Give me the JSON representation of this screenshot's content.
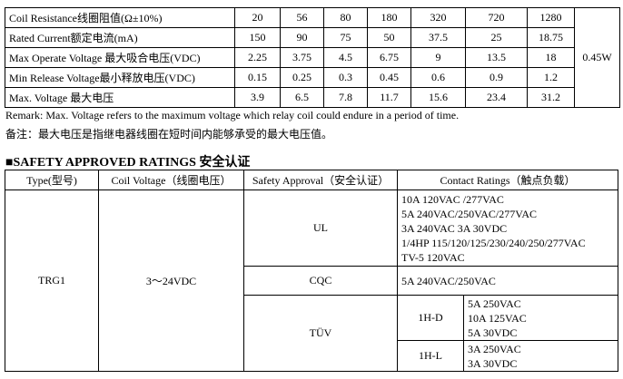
{
  "spec_table": {
    "rows": [
      {
        "label": "Coil Resistance线圈阻值(Ω±10%)",
        "values": [
          20,
          56,
          80,
          180,
          320,
          720,
          1280
        ]
      },
      {
        "label": "Rated Current额定电流(mA)",
        "values": [
          150,
          90,
          75,
          50,
          37.5,
          25,
          18.75
        ]
      },
      {
        "label": "Max Operate Voltage 最大吸合电压(VDC)",
        "values": [
          2.25,
          3.75,
          4.5,
          6.75,
          9,
          13.5,
          18
        ]
      },
      {
        "label": "Min Release Voltage最小释放电压(VDC)",
        "values": [
          0.15,
          0.25,
          0.3,
          0.45,
          0.6,
          0.9,
          1.2
        ]
      },
      {
        "label": "Max. Voltage  最大电压",
        "values": [
          3.9,
          6.5,
          7.8,
          11.7,
          15.6,
          23.4,
          31.2
        ]
      }
    ],
    "power": "0.45W"
  },
  "remarks": [
    "Remark: Max. Voltage refers to the maximum voltage which relay coil could endure in a period of time.",
    "备注：最大电压是指继电器线圈在短时间内能够承受的最大电压值。"
  ],
  "safety": {
    "heading": "■SAFETY APPROVED RATINGS 安全认证",
    "headers": [
      "Type(型号)",
      "Coil Voltage（线圈电压）",
      "Safety Approval（安全认证）",
      "Contact Ratings（触点负载）"
    ],
    "type": "TRG1",
    "coil_voltage": "3～24VDC",
    "approvals": [
      {
        "name": "UL",
        "ratings": [
          "10A 120VAC /277VAC",
          "5A 240VAC/250VAC/277VAC",
          "3A 240VAC    3A 30VDC",
          "1/4HP 115/120/125/230/240/250/277VAC",
          "TV-5 120VAC"
        ]
      },
      {
        "name": "CQC",
        "ratings": [
          "5A 240VAC/250VAC"
        ]
      },
      {
        "name": "TÜV",
        "groups": [
          {
            "name": "1H-D",
            "ratings": [
              "5A 250VAC",
              "10A 125VAC",
              "5A 30VDC"
            ]
          },
          {
            "name": "1H-L",
            "ratings": [
              "3A 250VAC",
              "3A 30VDC"
            ]
          }
        ]
      }
    ]
  }
}
